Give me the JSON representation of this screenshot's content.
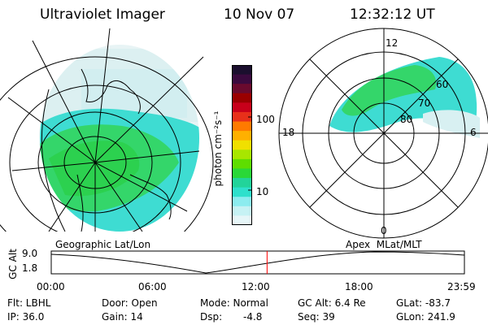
{
  "header": {
    "instrument": "Ultraviolet Imager",
    "date": "10 Nov 07",
    "time": "12:32:12 UT"
  },
  "colorbar": {
    "label": "photon cm⁻²s⁻¹",
    "ticks": [
      "100",
      "10"
    ],
    "colors_top_to_bottom": [
      "#1b0f2e",
      "#3a0a3e",
      "#6a0a2e",
      "#9a0000",
      "#c8001a",
      "#e8301a",
      "#ff7a00",
      "#ffb000",
      "#f0e000",
      "#a8e600",
      "#5ede00",
      "#2ad838",
      "#22d49a",
      "#2ee0cc",
      "#8cecef",
      "#c6f2f4",
      "#e6f6f8"
    ]
  },
  "left_panel": {
    "caption": "Geographic Lat/Lon"
  },
  "right_panel": {
    "caption": "Apex  MLat/MLT",
    "mlt_labels": {
      "top": "12",
      "left": "18",
      "right": "6",
      "bottom": "0"
    },
    "lat_labels": [
      "60",
      "70",
      "80"
    ]
  },
  "timeline": {
    "y_axis_label": "GC Alt",
    "y_ticks": [
      "9.0",
      "1.8"
    ],
    "x_ticks": [
      "00:00",
      "06:00",
      "12:00",
      "18:00",
      "23:59"
    ],
    "current_time_marker_fraction": 0.5224,
    "marker_color": "#ff0000"
  },
  "info_row1": {
    "filter": "Flt: LBHL",
    "door": "Door: Open",
    "mode": "Mode: Normal",
    "gc_alt": "GC Alt: 6.4 Re",
    "glat": "GLat: -83.7"
  },
  "info_row2": {
    "ip": "IP: 36.0",
    "gain": "Gain: 14",
    "dsp_label": "Dsp:",
    "dsp_value": "-4.8",
    "seq": "Seq: 39",
    "glon": "GLon: 241.9"
  }
}
